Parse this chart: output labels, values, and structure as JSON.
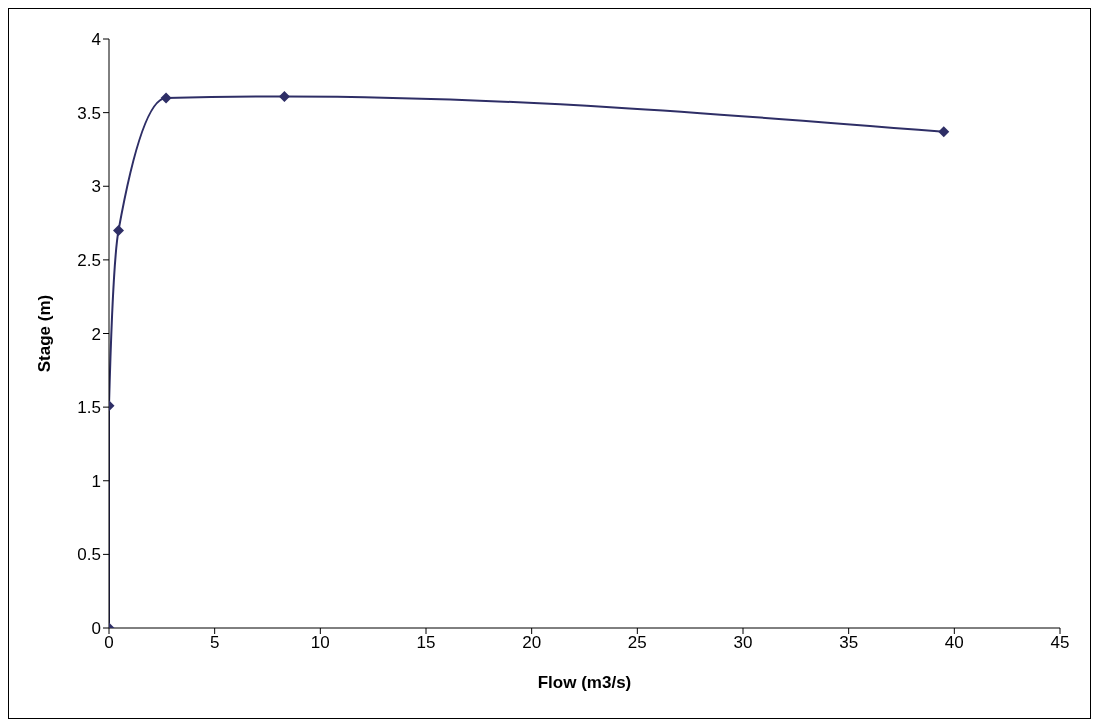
{
  "chart_data": {
    "type": "line",
    "xlabel": "Flow (m3/s)",
    "ylabel": "Stage (m)",
    "x": [
      0,
      0,
      0.45,
      2.7,
      8.3,
      39.5
    ],
    "series": [
      {
        "color": "#2e2e66",
        "values": [
          0,
          1.51,
          2.7,
          3.6,
          3.61,
          3.37
        ]
      }
    ],
    "xlim": [
      0,
      45
    ],
    "xticks": [
      0,
      5,
      10,
      15,
      20,
      25,
      30,
      35,
      40,
      45
    ],
    "ylim": [
      0,
      4
    ],
    "yticks": [
      0,
      0.5,
      1,
      1.5,
      2,
      2.5,
      3,
      3.5,
      4
    ],
    "grid": false,
    "legend": false,
    "marker": "diamond",
    "line_style": "solid"
  }
}
